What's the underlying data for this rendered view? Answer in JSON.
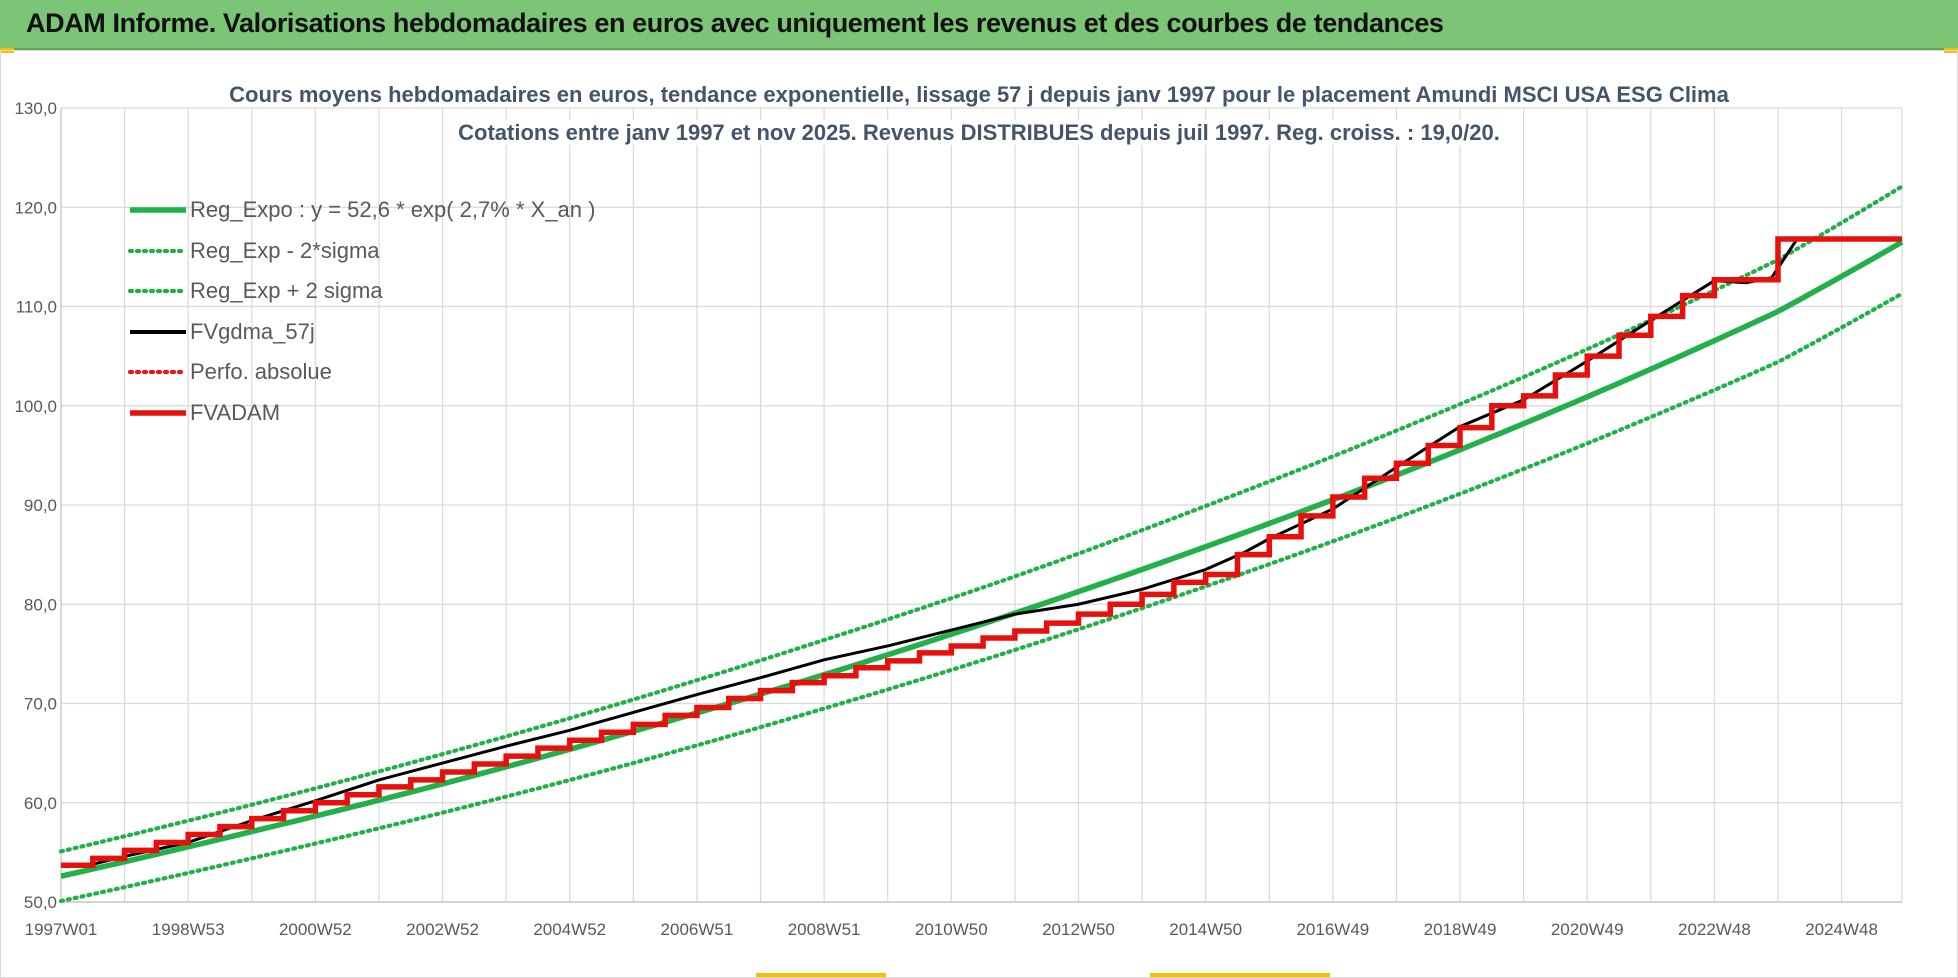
{
  "header": {
    "title": "ADAM Informe. Valorisations hebdomadaires en euros avec uniquement les revenus et des courbes de tendances"
  },
  "colors": {
    "header_bg": "#7cc576",
    "reg_expo": "#21b04a",
    "reg_band": "#21b04a",
    "fvgdma": "#000000",
    "perfo": "#e31a1c",
    "fvadam": "#e8100c",
    "title_text": "#44546a",
    "grid": "#d9d9d9"
  },
  "chart_data": {
    "type": "line",
    "title_line1": "Cours moyens hebdomadaires en euros, tendance exponentielle, lissage 57 j depuis janv 1997  pour le placement Amundi MSCI USA ESG Clima",
    "title_line2": "Cotations entre janv 1997 et nov 2025. Revenus DISTRIBUES depuis juil 1997. Reg. croiss. : 19,0/20.",
    "xlabel": "",
    "ylabel": "",
    "ylim": [
      50,
      130
    ],
    "yticks": [
      "50,0",
      "60,0",
      "70,0",
      "80,0",
      "90,0",
      "100,0",
      "110,0",
      "120,0",
      "130,0"
    ],
    "xlim": [
      1997.0,
      2025.95
    ],
    "xticks": [
      {
        "x": 1997.0,
        "label": "1997W01"
      },
      {
        "x": 1999.0,
        "label": "1998W53"
      },
      {
        "x": 2001.0,
        "label": "2000W52"
      },
      {
        "x": 2003.0,
        "label": "2002W52"
      },
      {
        "x": 2005.0,
        "label": "2004W52"
      },
      {
        "x": 2007.0,
        "label": "2006W51"
      },
      {
        "x": 2009.0,
        "label": "2008W51"
      },
      {
        "x": 2011.0,
        "label": "2010W50"
      },
      {
        "x": 2013.0,
        "label": "2012W50"
      },
      {
        "x": 2015.0,
        "label": "2014W50"
      },
      {
        "x": 2017.0,
        "label": "2016W49"
      },
      {
        "x": 2019.0,
        "label": "2018W49"
      },
      {
        "x": 2021.0,
        "label": "2020W49"
      },
      {
        "x": 2023.0,
        "label": "2022W48"
      },
      {
        "x": 2025.0,
        "label": "2024W48"
      }
    ],
    "grid": true,
    "legend_position": "top-left",
    "series": [
      {
        "name": "Reg_Expo : y = 52,6 * exp( 2,7% *  X_an )",
        "style": "solid-thick",
        "x": [
          1997.0,
          2000.0,
          2003.0,
          2006.0,
          2009.0,
          2012.0,
          2015.0,
          2018.0,
          2021.0,
          2024.0,
          2025.95
        ],
        "values": [
          52.6,
          57.1,
          61.9,
          67.2,
          72.9,
          79.1,
          85.8,
          93.0,
          100.9,
          109.5,
          116.5
        ]
      },
      {
        "name": "Reg_Exp - 2*sigma",
        "style": "dotted",
        "x": [
          1997.0,
          2000.0,
          2003.0,
          2006.0,
          2009.0,
          2012.0,
          2015.0,
          2018.0,
          2021.0,
          2024.0,
          2025.95
        ],
        "values": [
          50.1,
          54.4,
          59.0,
          64.0,
          69.5,
          75.4,
          81.8,
          88.7,
          96.2,
          104.4,
          111.3
        ]
      },
      {
        "name": "Reg_Exp + 2 sigma",
        "style": "dotted",
        "x": [
          1997.0,
          2000.0,
          2003.0,
          2006.0,
          2009.0,
          2012.0,
          2015.0,
          2018.0,
          2021.0,
          2024.0,
          2025.95
        ],
        "values": [
          55.1,
          59.8,
          64.9,
          70.4,
          76.4,
          82.8,
          89.9,
          97.5,
          105.7,
          114.7,
          122.1
        ]
      },
      {
        "name": "FVgdma_57j",
        "style": "solid-thin",
        "x": [
          1997.0,
          1997.5,
          1998.0,
          1999.0,
          2000.0,
          2001.0,
          2002.0,
          2003.0,
          2004.0,
          2005.0,
          2006.0,
          2007.0,
          2008.0,
          2009.0,
          2010.0,
          2011.0,
          2012.0,
          2013.0,
          2014.0,
          2015.0,
          2015.6,
          2016.0,
          2017.0,
          2018.0,
          2019.0,
          2020.0,
          2021.0,
          2022.0,
          2023.0,
          2023.5,
          2023.9,
          2024.3,
          2025.0,
          2025.95
        ],
        "values": [
          53.7,
          53.8,
          54.6,
          56.0,
          58.2,
          60.2,
          62.3,
          64.0,
          65.7,
          67.3,
          69.1,
          70.9,
          72.6,
          74.4,
          75.8,
          77.4,
          79.0,
          80.0,
          81.5,
          83.5,
          85.2,
          86.6,
          89.6,
          93.8,
          97.9,
          100.6,
          104.5,
          108.6,
          112.6,
          112.4,
          112.9,
          116.8,
          116.8,
          116.8
        ]
      },
      {
        "name": "Perfo. absolue",
        "style": "dotted",
        "x": [],
        "values": []
      },
      {
        "name": "FVADAM",
        "style": "solid-thick",
        "x": [
          1997.0,
          1997.5,
          1997.5,
          1998.0,
          1998.0,
          1998.5,
          1998.5,
          1999.0,
          1999.0,
          1999.5,
          1999.5,
          2000.0,
          2000.0,
          2000.5,
          2000.5,
          2001.0,
          2001.0,
          2001.5,
          2001.5,
          2002.0,
          2002.0,
          2002.5,
          2002.5,
          2003.0,
          2003.0,
          2003.5,
          2003.5,
          2004.0,
          2004.0,
          2004.5,
          2004.5,
          2005.0,
          2005.0,
          2005.5,
          2005.5,
          2006.0,
          2006.0,
          2006.5,
          2006.5,
          2007.0,
          2007.0,
          2007.5,
          2007.5,
          2008.0,
          2008.0,
          2008.5,
          2008.5,
          2009.0,
          2009.0,
          2009.5,
          2009.5,
          2010.0,
          2010.0,
          2010.5,
          2010.5,
          2011.0,
          2011.0,
          2011.5,
          2011.5,
          2012.0,
          2012.0,
          2012.5,
          2012.5,
          2013.0,
          2013.0,
          2013.5,
          2013.5,
          2014.0,
          2014.0,
          2014.5,
          2014.5,
          2015.0,
          2015.0,
          2015.5,
          2015.5,
          2016.0,
          2016.0,
          2016.5,
          2016.5,
          2017.0,
          2017.0,
          2017.5,
          2017.5,
          2018.0,
          2018.0,
          2018.5,
          2018.5,
          2019.0,
          2019.0,
          2019.5,
          2019.5,
          2020.0,
          2020.0,
          2020.5,
          2020.5,
          2021.0,
          2021.0,
          2021.5,
          2021.5,
          2022.0,
          2022.0,
          2022.5,
          2022.5,
          2023.0,
          2023.0,
          2024.0,
          2024.0,
          2025.95
        ],
        "values": [
          53.7,
          53.7,
          54.4,
          54.4,
          55.2,
          55.2,
          56.0,
          56.0,
          56.8,
          56.8,
          57.6,
          57.6,
          58.4,
          58.4,
          59.2,
          59.2,
          60.0,
          60.0,
          60.8,
          60.8,
          61.6,
          61.6,
          62.3,
          62.3,
          63.1,
          63.1,
          63.9,
          63.9,
          64.7,
          64.7,
          65.5,
          65.5,
          66.3,
          66.3,
          67.1,
          67.1,
          67.9,
          67.9,
          68.8,
          68.8,
          69.6,
          69.6,
          70.5,
          70.5,
          71.3,
          71.3,
          72.1,
          72.1,
          72.8,
          72.8,
          73.6,
          73.6,
          74.3,
          74.3,
          75.1,
          75.1,
          75.8,
          75.8,
          76.6,
          76.6,
          77.3,
          77.3,
          78.1,
          78.1,
          79.0,
          79.0,
          80.0,
          80.0,
          81.0,
          81.0,
          82.2,
          82.2,
          83.0,
          83.0,
          85.0,
          85.0,
          86.8,
          86.8,
          88.9,
          88.9,
          90.8,
          90.8,
          92.7,
          92.7,
          94.2,
          94.2,
          96.0,
          96.0,
          97.8,
          97.8,
          100.0,
          100.0,
          101.0,
          101.0,
          103.1,
          103.1,
          105.0,
          105.0,
          107.1,
          107.1,
          109.0,
          109.0,
          111.1,
          111.1,
          112.7,
          112.7,
          116.8,
          116.8
        ]
      }
    ]
  },
  "legend": [
    {
      "label": "Reg_Expo : y = 52,6 * exp( 2,7% *  X_an )",
      "style": "solid-thick",
      "color": "#21b04a"
    },
    {
      "label": "Reg_Exp - 2*sigma",
      "style": "dotted",
      "color": "#21b04a"
    },
    {
      "label": "Reg_Exp + 2 sigma",
      "style": "dotted",
      "color": "#21b04a"
    },
    {
      "label": "FVgdma_57j",
      "style": "solid-medium",
      "color": "#000000"
    },
    {
      "label": "Perfo. absolue",
      "style": "dotted",
      "color": "#e31a1c"
    },
    {
      "label": "FVADAM",
      "style": "solid-thick",
      "color": "#e8100c"
    }
  ]
}
